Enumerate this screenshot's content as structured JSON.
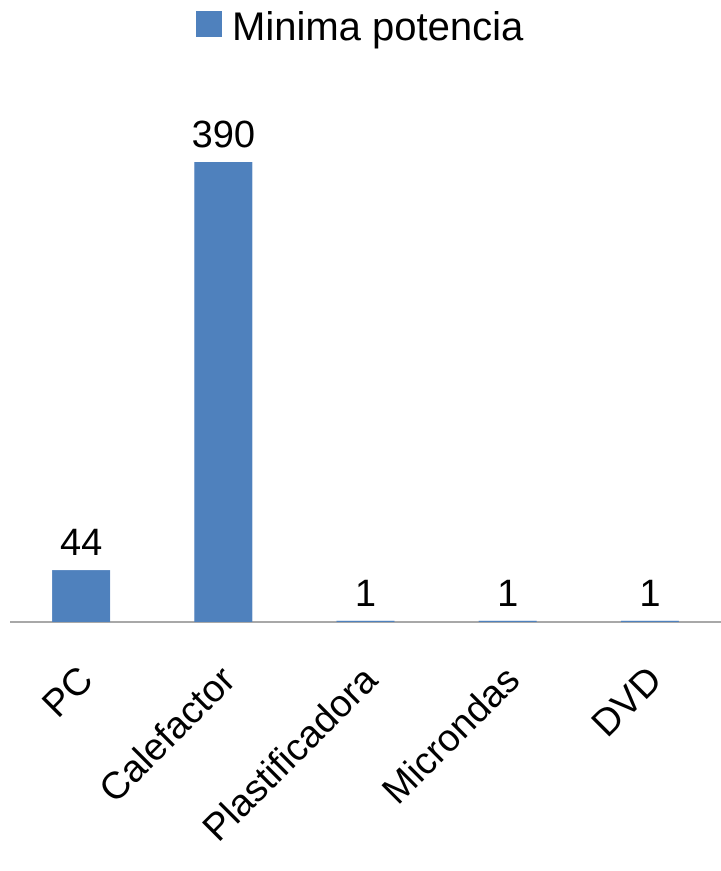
{
  "chart_data": {
    "type": "bar",
    "categories": [
      "PC",
      "Calefactor",
      "Plastificadora",
      "Microndas",
      "DVD"
    ],
    "series": [
      {
        "name": "Minima potencia",
        "values": [
          44,
          390,
          1,
          1,
          1
        ],
        "color": "#4f81bd"
      }
    ],
    "data_labels": [
      "44",
      "390",
      "1",
      "1",
      "1"
    ],
    "ylim": [
      0,
      390
    ],
    "grid": false,
    "legend_position": "top",
    "x_tick_rotation": "-45deg"
  }
}
